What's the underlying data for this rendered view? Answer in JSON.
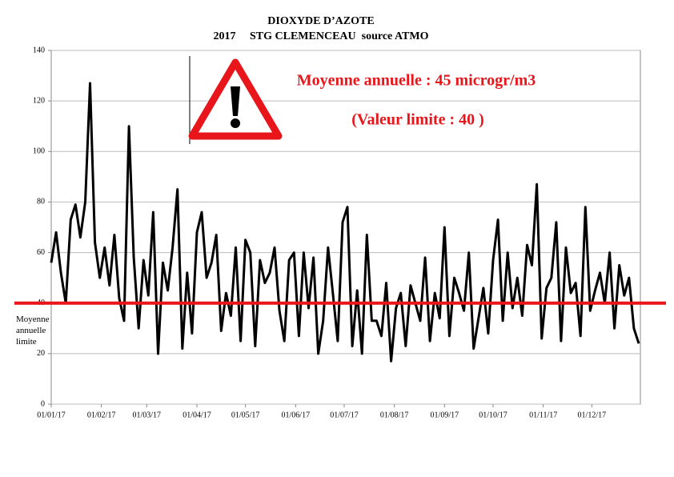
{
  "chart_data": {
    "type": "line",
    "title": "DIOXYDE D’AZOTE",
    "subtitle": "2017     STG CLEMENCEAU  source ATMO",
    "annotations": [
      "Moyenne annuelle : 45 microgr/m3",
      "(Valeur limite : 40 )"
    ],
    "threshold": {
      "value": 40,
      "color": "#e8161b",
      "label_lines": [
        "Moyenne",
        "annuelle",
        "limite"
      ]
    },
    "x": [
      "01/01/17",
      "04/01/17",
      "07/01/17",
      "10/01/17",
      "13/01/17",
      "16/01/17",
      "19/01/17",
      "22/01/17",
      "25/01/17",
      "28/01/17",
      "31/01/17",
      "03/02/17",
      "06/02/17",
      "09/02/17",
      "12/02/17",
      "15/02/17",
      "18/02/17",
      "21/02/17",
      "24/02/17",
      "27/02/17",
      "02/03/17",
      "05/03/17",
      "08/03/17",
      "11/03/17",
      "14/03/17",
      "17/03/17",
      "20/03/17",
      "23/03/17",
      "26/03/17",
      "29/03/17",
      "01/04/17",
      "04/04/17",
      "07/04/17",
      "10/04/17",
      "13/04/17",
      "16/04/17",
      "19/04/17",
      "22/04/17",
      "25/04/17",
      "28/04/17",
      "01/05/17",
      "04/05/17",
      "07/05/17",
      "10/05/17",
      "13/05/17",
      "16/05/17",
      "19/05/17",
      "22/05/17",
      "25/05/17",
      "28/05/17",
      "31/05/17",
      "03/06/17",
      "06/06/17",
      "09/06/17",
      "12/06/17",
      "15/06/17",
      "18/06/17",
      "21/06/17",
      "24/06/17",
      "27/06/17",
      "30/06/17",
      "03/07/17",
      "06/07/17",
      "09/07/17",
      "12/07/17",
      "15/07/17",
      "18/07/17",
      "21/07/17",
      "24/07/17",
      "27/07/17",
      "30/07/17",
      "02/08/17",
      "05/08/17",
      "08/08/17",
      "11/08/17",
      "14/08/17",
      "17/08/17",
      "20/08/17",
      "23/08/17",
      "26/08/17",
      "29/08/17",
      "01/09/17",
      "04/09/17",
      "07/09/17",
      "10/09/17",
      "13/09/17",
      "16/09/17",
      "19/09/17",
      "22/09/17",
      "25/09/17",
      "28/09/17",
      "01/10/17",
      "04/10/17",
      "07/10/17",
      "10/10/17",
      "13/10/17",
      "16/10/17",
      "19/10/17",
      "22/10/17",
      "25/10/17",
      "28/10/17",
      "31/10/17",
      "03/11/17",
      "06/11/17",
      "09/11/17",
      "12/11/17",
      "15/11/17",
      "18/11/17",
      "21/11/17",
      "24/11/17",
      "27/11/17",
      "30/11/17",
      "03/12/17",
      "06/12/17",
      "09/12/17",
      "12/12/17",
      "15/12/17",
      "18/12/17",
      "21/12/17",
      "24/12/17",
      "27/12/17",
      "30/12/17"
    ],
    "series": [
      {
        "color": "#000000",
        "values": [
          56,
          68,
          52,
          40,
          73,
          79,
          66,
          80,
          127,
          64,
          50,
          62,
          47,
          67,
          42,
          33,
          110,
          58,
          30,
          57,
          43,
          76,
          20,
          56,
          45,
          62,
          85,
          22,
          52,
          28,
          68,
          76,
          50,
          56,
          67,
          29,
          44,
          35,
          62,
          25,
          65,
          60,
          23,
          57,
          48,
          52,
          62,
          37,
          25,
          57,
          60,
          27,
          60,
          38,
          58,
          20,
          33,
          62,
          44,
          25,
          72,
          78,
          23,
          45,
          20,
          67,
          33,
          33,
          27,
          48,
          17,
          38,
          44,
          23,
          47,
          40,
          33,
          58,
          25,
          44,
          34,
          70,
          27,
          50,
          44,
          37,
          60,
          22,
          34,
          46,
          28,
          57,
          73,
          33,
          60,
          38,
          50,
          35,
          63,
          55,
          87,
          26,
          46,
          50,
          72,
          25,
          62,
          44,
          48,
          27,
          78,
          37,
          45,
          52,
          40,
          60,
          30,
          55,
          43,
          50,
          30,
          24
        ]
      }
    ],
    "xlim": [
      "01/01/17",
      "31/12/17"
    ],
    "xticks": [
      "01/01/17",
      "01/02/17",
      "01/03/17",
      "01/04/17",
      "01/05/17",
      "01/06/17",
      "01/07/17",
      "01/08/17",
      "01/09/17",
      "01/10/17",
      "01/11/17",
      "01/12/17"
    ],
    "ylim": [
      0,
      140
    ],
    "yticks": [
      0,
      20,
      40,
      60,
      80,
      100,
      120,
      140
    ],
    "grid": true
  }
}
